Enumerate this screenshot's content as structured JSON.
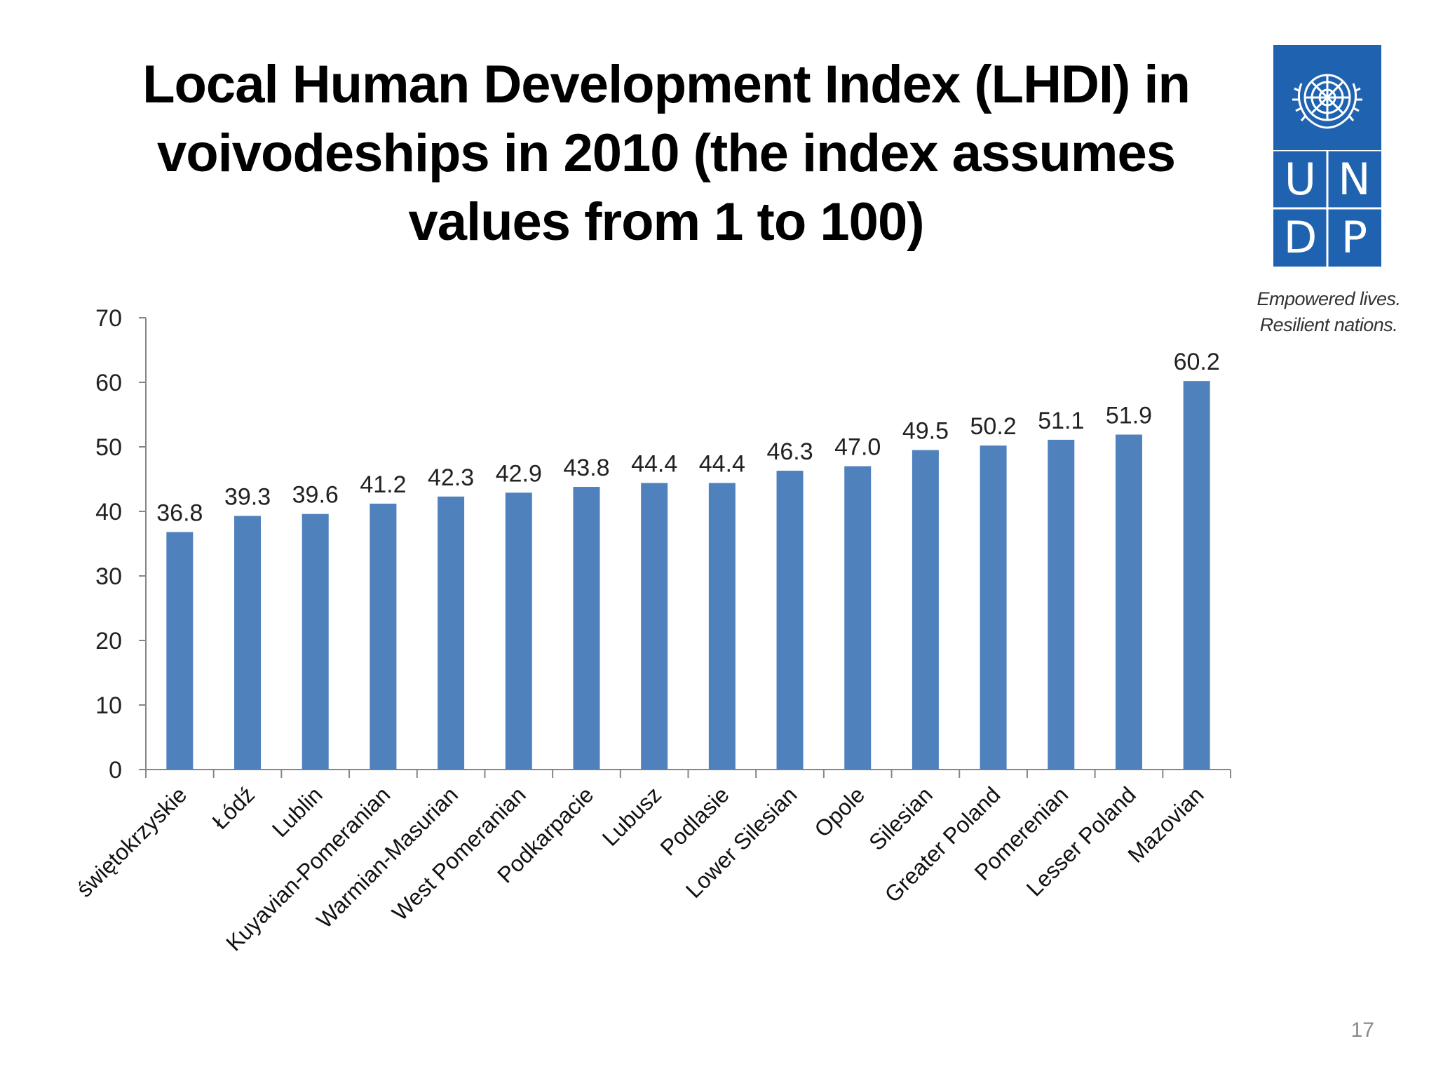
{
  "slide": {
    "title": "Local Human Development Index (LHDI) in voivodeships in 2010 (the index assumes values from 1 to 100)",
    "page_number": "17"
  },
  "logo": {
    "letters": [
      "U",
      "N",
      "D",
      "P"
    ],
    "tagline_line1": "Empowered lives.",
    "tagline_line2": "Resilient nations.",
    "brand_color": "#1f63b0",
    "icon": "un-emblem-icon"
  },
  "colors": {
    "bar": "#4f81bd",
    "axis": "#868686",
    "text": "#000000"
  },
  "chart_data": {
    "type": "bar",
    "title": "",
    "xlabel": "",
    "ylabel": "",
    "categories": [
      "świętokrzyskie",
      "Łódź",
      "Lublin",
      "Kuyavian-Pomeranian",
      "Warmian-Masurian",
      "West Pomeranian",
      "Podkarpacie",
      "Lubusz",
      "Podlasie",
      "Lower Silesian",
      "Opole",
      "Silesian",
      "Greater Poland",
      "Pomerenian",
      "Lesser Poland",
      "Mazovian"
    ],
    "values": [
      36.8,
      39.3,
      39.6,
      41.2,
      42.3,
      42.9,
      43.8,
      44.4,
      44.4,
      46.3,
      47.0,
      49.5,
      50.2,
      51.1,
      51.9,
      60.2
    ],
    "value_labels": [
      "36.8",
      "39.3",
      "39.6",
      "41.2",
      "42.3",
      "42.9",
      "43.8",
      "44.4",
      "44.4",
      "46.3",
      "47.0",
      "49.5",
      "50.2",
      "51.1",
      "51.9",
      "60.2"
    ],
    "ylim": [
      0,
      70
    ],
    "yticks": [
      "0",
      "10",
      "20",
      "30",
      "40",
      "50",
      "60",
      "70"
    ],
    "grid": false,
    "legend": "none"
  }
}
